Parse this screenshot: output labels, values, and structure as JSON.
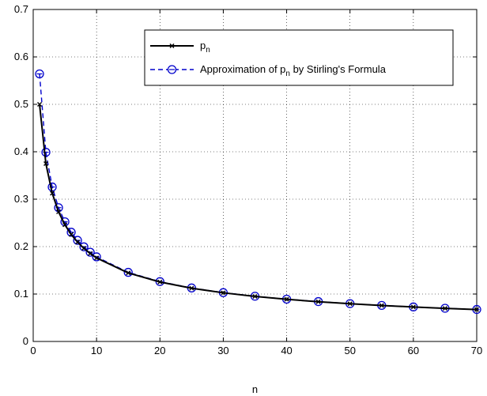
{
  "chart_data": {
    "type": "line",
    "title": "",
    "xlabel": "n",
    "ylabel": "",
    "xlim": [
      0,
      70
    ],
    "ylim": [
      0,
      0.7
    ],
    "xticks": [
      0,
      10,
      20,
      30,
      40,
      50,
      60,
      70
    ],
    "yticks": [
      0,
      0.1,
      0.2,
      0.3,
      0.4,
      0.5,
      0.6,
      0.7
    ],
    "xtick_labels": [
      "0",
      "10",
      "20",
      "30",
      "40",
      "50",
      "60",
      "70"
    ],
    "ytick_labels": [
      "0",
      "0.1",
      "0.2",
      "0.3",
      "0.4",
      "0.5",
      "0.6",
      "0.7"
    ],
    "grid": true,
    "legend_position": "top-right",
    "series": [
      {
        "name": "p_n",
        "legend_main": "p",
        "legend_sub": "n",
        "color": "#000000",
        "line_style": "solid",
        "marker": "x",
        "x": [
          1,
          2,
          3,
          4,
          5,
          6,
          7,
          8,
          9,
          10,
          15,
          20,
          25,
          30,
          35,
          40,
          45,
          50,
          55,
          60,
          65,
          70
        ],
        "y": [
          0.5,
          0.375,
          0.3125,
          0.2734,
          0.2461,
          0.2256,
          0.2095,
          0.1964,
          0.1855,
          0.1762,
          0.1445,
          0.1254,
          0.1123,
          0.1026,
          0.095,
          0.0889,
          0.0838,
          0.0796,
          0.0759,
          0.0727,
          0.0698,
          0.0673
        ]
      },
      {
        "name": "Approximation of p_n by Stirling's Formula",
        "legend_main": "Approximation of p",
        "legend_sub": "n",
        "legend_rest": " by Stirling's Formula",
        "color": "#0000cc",
        "line_style": "dashed",
        "marker": "circle",
        "x": [
          1,
          2,
          3,
          4,
          5,
          6,
          7,
          8,
          9,
          10,
          15,
          20,
          25,
          30,
          35,
          40,
          45,
          50,
          55,
          60,
          65,
          70
        ],
        "y": [
          0.5642,
          0.3989,
          0.3257,
          0.2821,
          0.2523,
          0.2303,
          0.2132,
          0.1995,
          0.1881,
          0.1784,
          0.1457,
          0.1262,
          0.1128,
          0.103,
          0.0954,
          0.0892,
          0.0841,
          0.0798,
          0.0761,
          0.0728,
          0.07,
          0.0674
        ]
      }
    ]
  }
}
